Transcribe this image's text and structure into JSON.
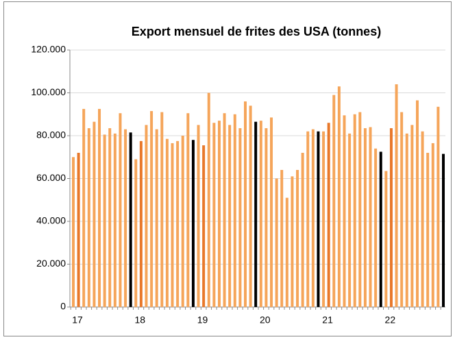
{
  "chart_data": {
    "type": "bar",
    "title": "Export mensuel de frites des USA (tonnes)",
    "categories": [
      "17",
      null,
      null,
      null,
      null,
      null,
      null,
      null,
      null,
      null,
      null,
      null,
      "18",
      null,
      null,
      null,
      null,
      null,
      null,
      null,
      null,
      null,
      null,
      null,
      "19",
      null,
      null,
      null,
      null,
      null,
      null,
      null,
      null,
      null,
      null,
      null,
      "20",
      null,
      null,
      null,
      null,
      null,
      null,
      null,
      null,
      null,
      null,
      null,
      "21",
      null,
      null,
      null,
      null,
      null,
      null,
      null,
      null,
      null,
      null,
      null,
      "22",
      null,
      null,
      null,
      null,
      null,
      null,
      null,
      null,
      null,
      null,
      null
    ],
    "values": [
      70000,
      72000,
      92500,
      83500,
      86500,
      92500,
      80500,
      83500,
      81000,
      90500,
      83000,
      81500,
      69000,
      77500,
      85000,
      91500,
      83000,
      91000,
      78500,
      76500,
      77500,
      80000,
      90500,
      78000,
      85000,
      75500,
      100000,
      86000,
      87000,
      90500,
      85000,
      90000,
      83500,
      96000,
      94000,
      86500,
      87000,
      83500,
      88500,
      60000,
      64000,
      51000,
      61000,
      64000,
      72000,
      82000,
      83000,
      82000,
      82000,
      86000,
      99000,
      103000,
      89500,
      81000,
      90000,
      91000,
      83500,
      84000,
      74000,
      72500,
      63500,
      83500,
      104000,
      91000,
      81000,
      85000,
      96500,
      82000,
      72000,
      76500,
      93500,
      71500
    ],
    "colors": [
      "#f5a55a",
      "#e8782a",
      "#f5a55a",
      "#f5a55a",
      "#f5a55a",
      "#f5a55a",
      "#f5a55a",
      "#f5a55a",
      "#f5a55a",
      "#f5a55a",
      "#f5a55a",
      "#000000",
      "#f5a55a",
      "#e8782a",
      "#f5a55a",
      "#f5a55a",
      "#f5a55a",
      "#f5a55a",
      "#f5a55a",
      "#f5a55a",
      "#f5a55a",
      "#f5a55a",
      "#f5a55a",
      "#000000",
      "#f5a55a",
      "#e8782a",
      "#f5a55a",
      "#f5a55a",
      "#f5a55a",
      "#f5a55a",
      "#f5a55a",
      "#f5a55a",
      "#f5a55a",
      "#f5a55a",
      "#f5a55a",
      "#000000",
      "#f5a55a",
      "#f5a55a",
      "#f5a55a",
      "#f5a55a",
      "#f5a55a",
      "#f5a55a",
      "#f5a55a",
      "#f5a55a",
      "#f5a55a",
      "#f5a55a",
      "#f5a55a",
      "#000000",
      "#f5a55a",
      "#e8782a",
      "#f5a55a",
      "#f5a55a",
      "#f5a55a",
      "#f5a55a",
      "#f5a55a",
      "#f5a55a",
      "#f5a55a",
      "#f5a55a",
      "#f5a55a",
      "#000000",
      "#f5a55a",
      "#e8782a",
      "#f5a55a",
      "#f5a55a",
      "#f5a55a",
      "#f5a55a",
      "#f5a55a",
      "#f5a55a",
      "#f5a55a",
      "#f5a55a",
      "#f5a55a",
      "#000000"
    ],
    "ylim": [
      0,
      120000
    ],
    "yticks": [
      0,
      {
        "value": 20000,
        "label": "20.000"
      },
      {
        "value": 40000,
        "label": "40.000"
      },
      {
        "value": 60000,
        "label": "60.000"
      },
      {
        "value": 80000,
        "label": "80.000"
      },
      {
        "value": 100000,
        "label": "100.000"
      },
      {
        "value": 120000,
        "label": "120.000"
      }
    ],
    "grid": true
  }
}
